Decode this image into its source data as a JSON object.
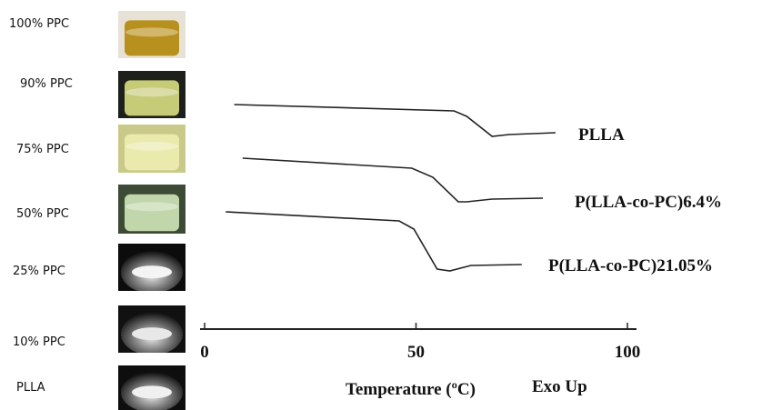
{
  "photos": [
    {
      "label": "100% PPC"
    },
    {
      "label": "90% PPC"
    },
    {
      "label": "75% PPC"
    },
    {
      "label": "50% PPC"
    },
    {
      "label": "25% PPC"
    },
    {
      "label": "10% PPC"
    },
    {
      "label": "PLLA"
    }
  ],
  "chart_data": {
    "type": "line",
    "x_label": "Temperature (ºC)",
    "annotation": "Exo Up",
    "xlim": [
      0,
      100
    ],
    "xticks": [
      0,
      50,
      100
    ],
    "series": [
      {
        "name": "PLLA",
        "color": "#222222",
        "x": [
          7,
          59,
          62,
          68,
          72,
          83
        ],
        "values": [
          247,
          240,
          234,
          212,
          214,
          216
        ]
      },
      {
        "name": "P(LLA-co-PC)6.4%",
        "color": "#222222",
        "x": [
          9,
          49,
          54,
          60,
          62,
          68,
          80
        ],
        "values": [
          188,
          177,
          167,
          140,
          140,
          143,
          144
        ]
      },
      {
        "name": "P(LLA-co-PC)21.05%",
        "color": "#222222",
        "x": [
          5,
          46,
          49.5,
          55,
          58,
          63,
          75
        ],
        "values": [
          129,
          119,
          110,
          66,
          64,
          70,
          71
        ]
      }
    ]
  }
}
